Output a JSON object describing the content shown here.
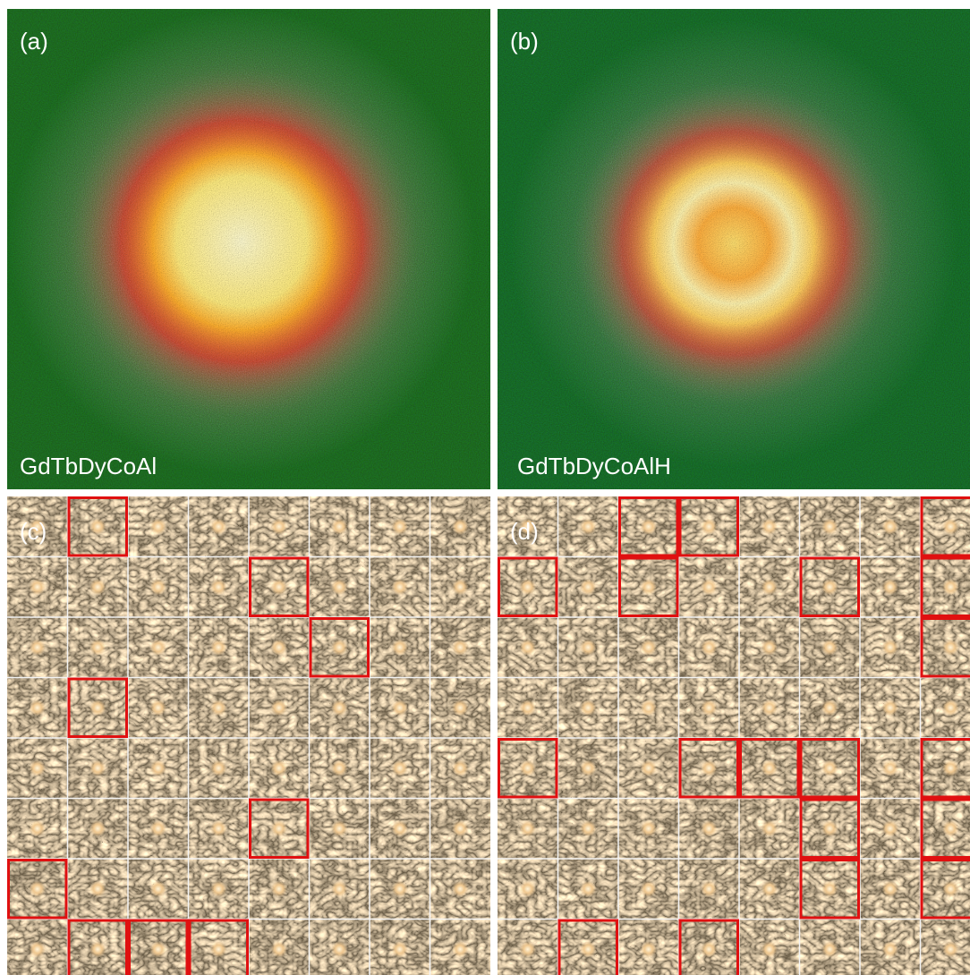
{
  "panels": [
    {
      "label": "(a)",
      "sample": "GdTbDyCoAl"
    },
    {
      "label": "(b)",
      "sample": "GdTbDyCoAlH"
    },
    {
      "label": "(c)"
    },
    {
      "label": "(d)"
    }
  ]
}
